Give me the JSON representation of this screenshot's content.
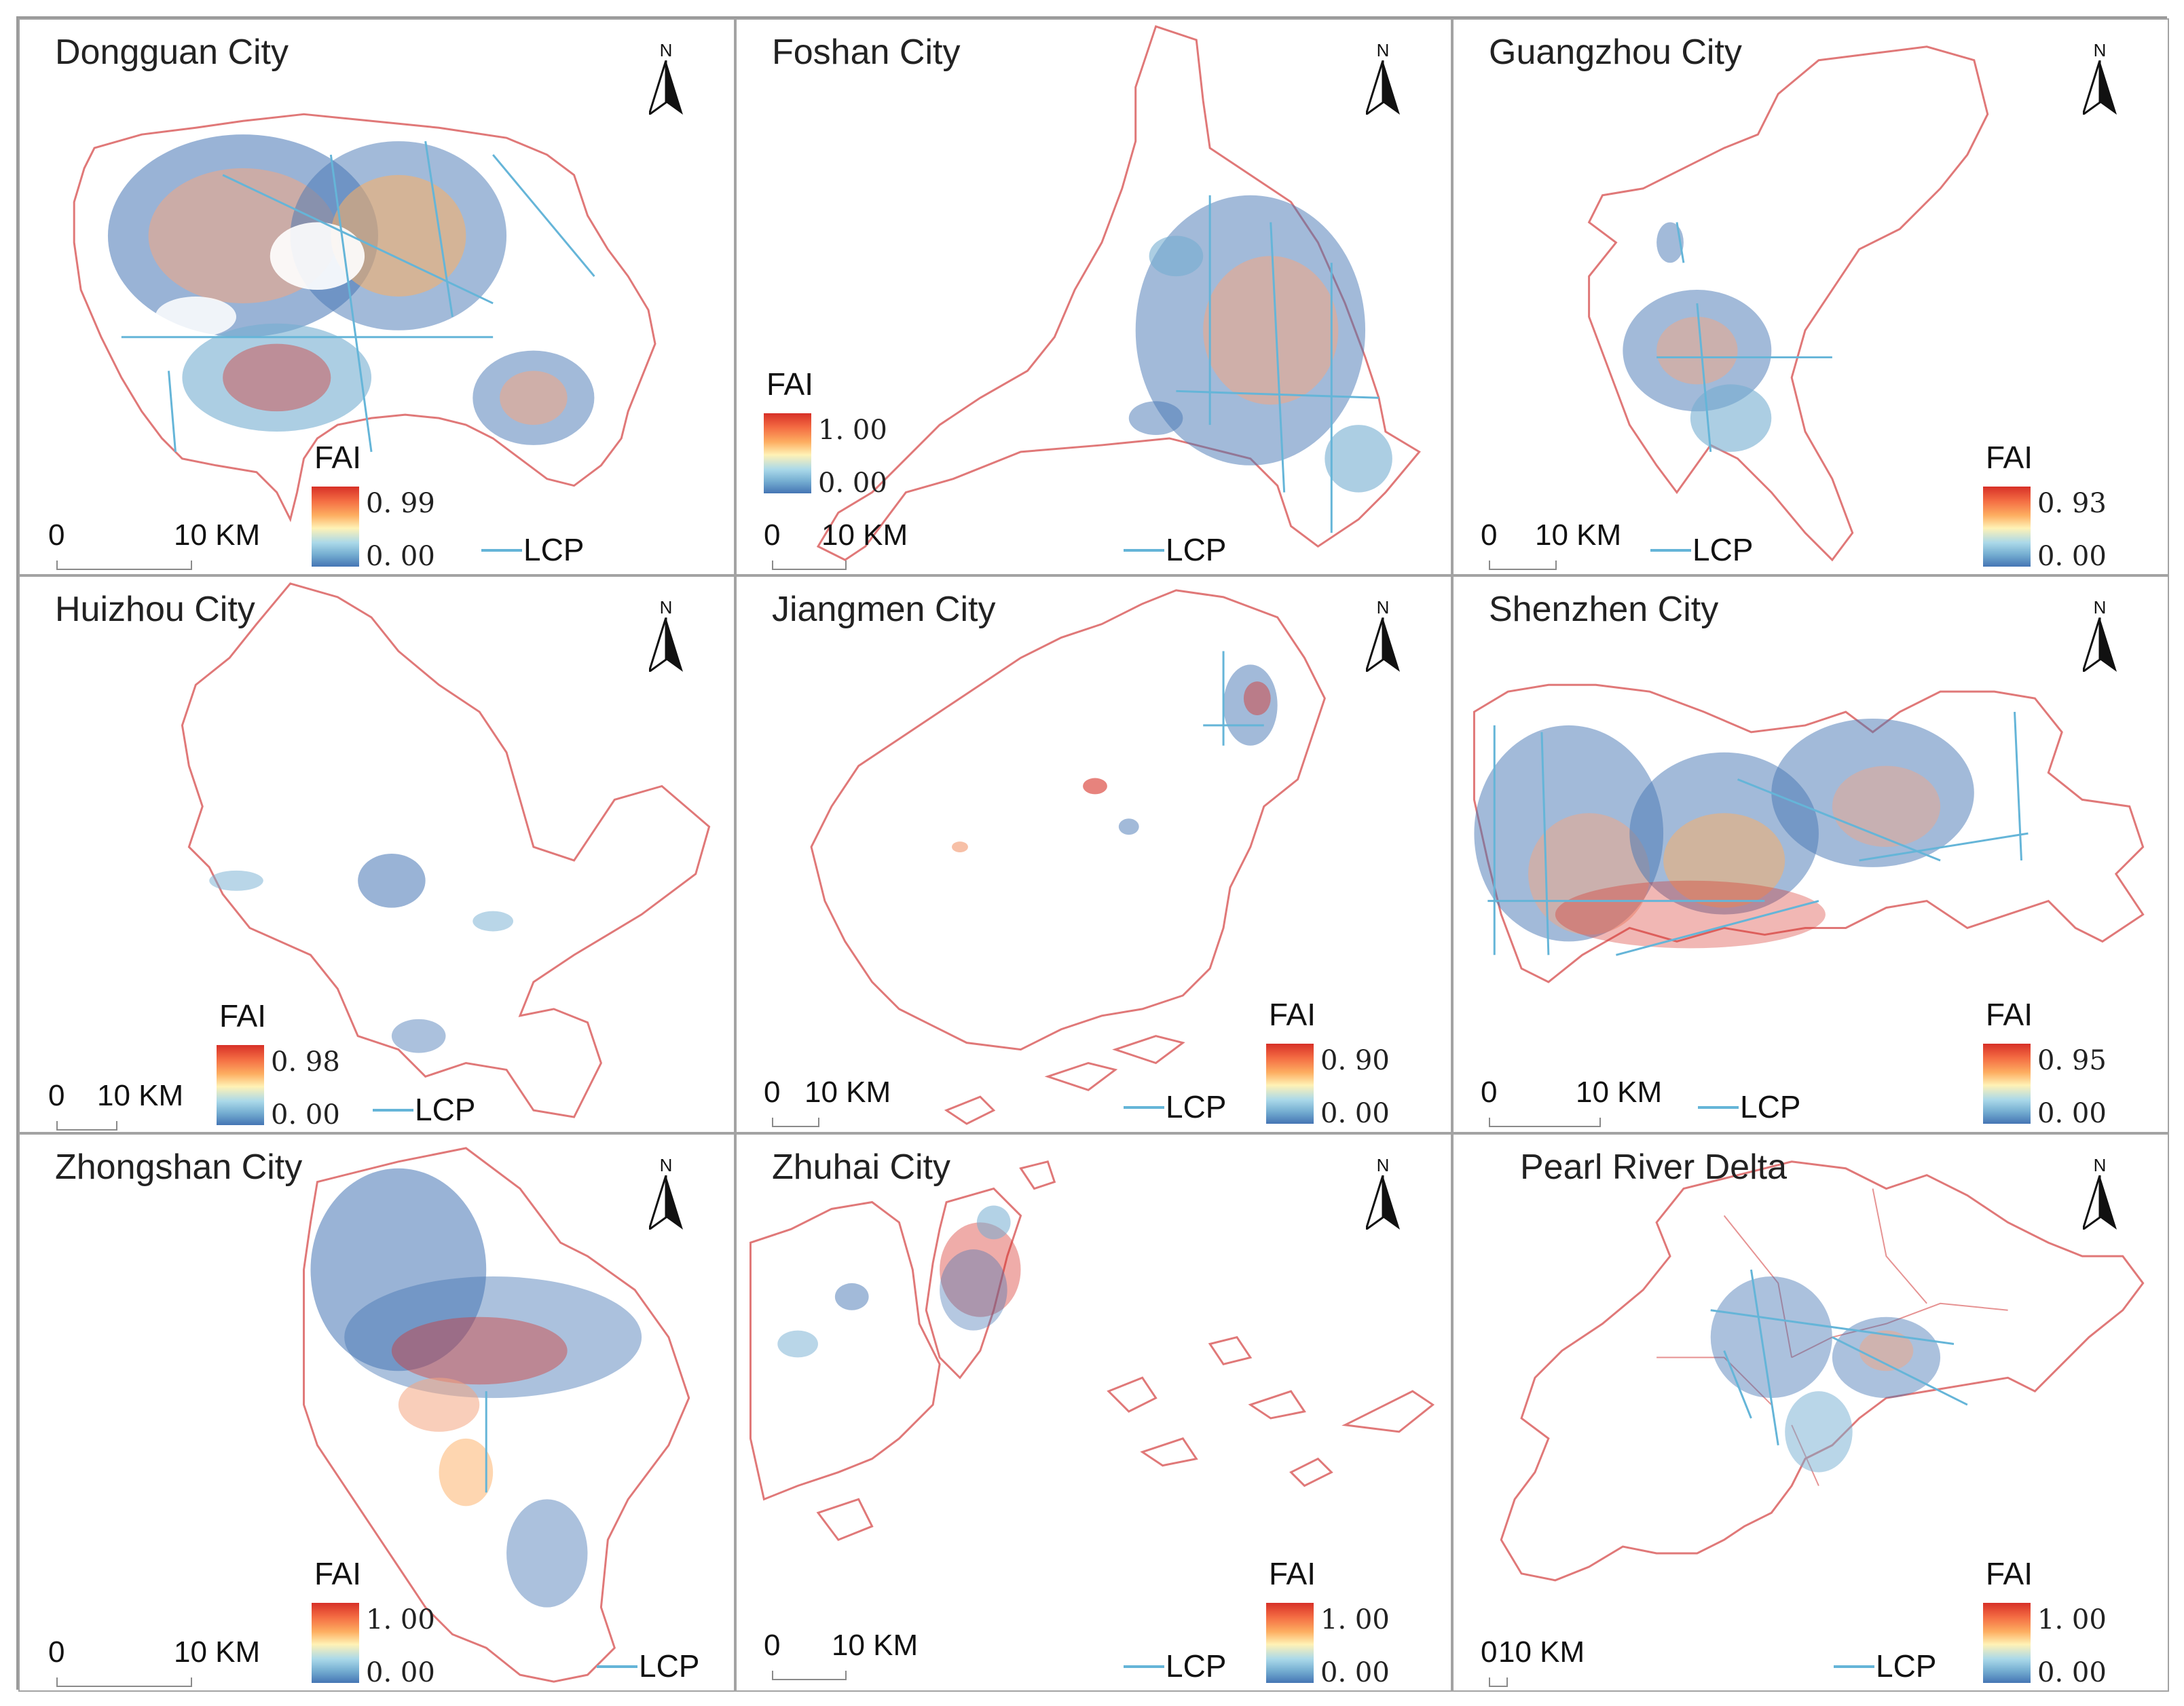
{
  "figure": {
    "colors": {
      "boundary": "#e07878",
      "lcp_line": "#65b5d8",
      "fai_high": "#d73027",
      "fai_mid": "#fff2b6",
      "fai_low": "#4575b4"
    },
    "north_label": "N",
    "legend_title": "FAI",
    "lcp_label": "LCP",
    "panels": [
      {
        "title": "Dongguan City",
        "fai_max": "0. 99",
        "fai_min": "0. 00",
        "scale_start": "0",
        "scale_end": "10 KM",
        "density": "high"
      },
      {
        "title": "Foshan City",
        "fai_max": "1. 00",
        "fai_min": "0. 00",
        "scale_start": "0",
        "scale_end": "10 KM",
        "density": "medium"
      },
      {
        "title": "Guangzhou City",
        "fai_max": "0. 93",
        "fai_min": "0. 00",
        "scale_start": "0",
        "scale_end": "10 KM",
        "density": "medium"
      },
      {
        "title": "Huizhou City",
        "fai_max": "0. 98",
        "fai_min": "0. 00",
        "scale_start": "0",
        "scale_end": "10 KM",
        "density": "low"
      },
      {
        "title": "Jiangmen City",
        "fai_max": "0. 90",
        "fai_min": "0. 00",
        "scale_start": "0",
        "scale_end": "10 KM",
        "density": "low"
      },
      {
        "title": "Shenzhen City",
        "fai_max": "0. 95",
        "fai_min": "0. 00",
        "scale_start": "0",
        "scale_end": "10 KM",
        "density": "high"
      },
      {
        "title": "Zhongshan City",
        "fai_max": "1. 00",
        "fai_min": "0. 00",
        "scale_start": "0",
        "scale_end": "10 KM",
        "density": "high"
      },
      {
        "title": "Zhuhai City",
        "fai_max": "1. 00",
        "fai_min": "0. 00",
        "scale_start": "0",
        "scale_end": "10 KM",
        "density": "medium"
      },
      {
        "title": "Pearl River Delta",
        "fai_max": "1. 00",
        "fai_min": "0. 00",
        "scale_start": "0",
        "scale_end": "10 KM",
        "density": "medium"
      }
    ]
  }
}
